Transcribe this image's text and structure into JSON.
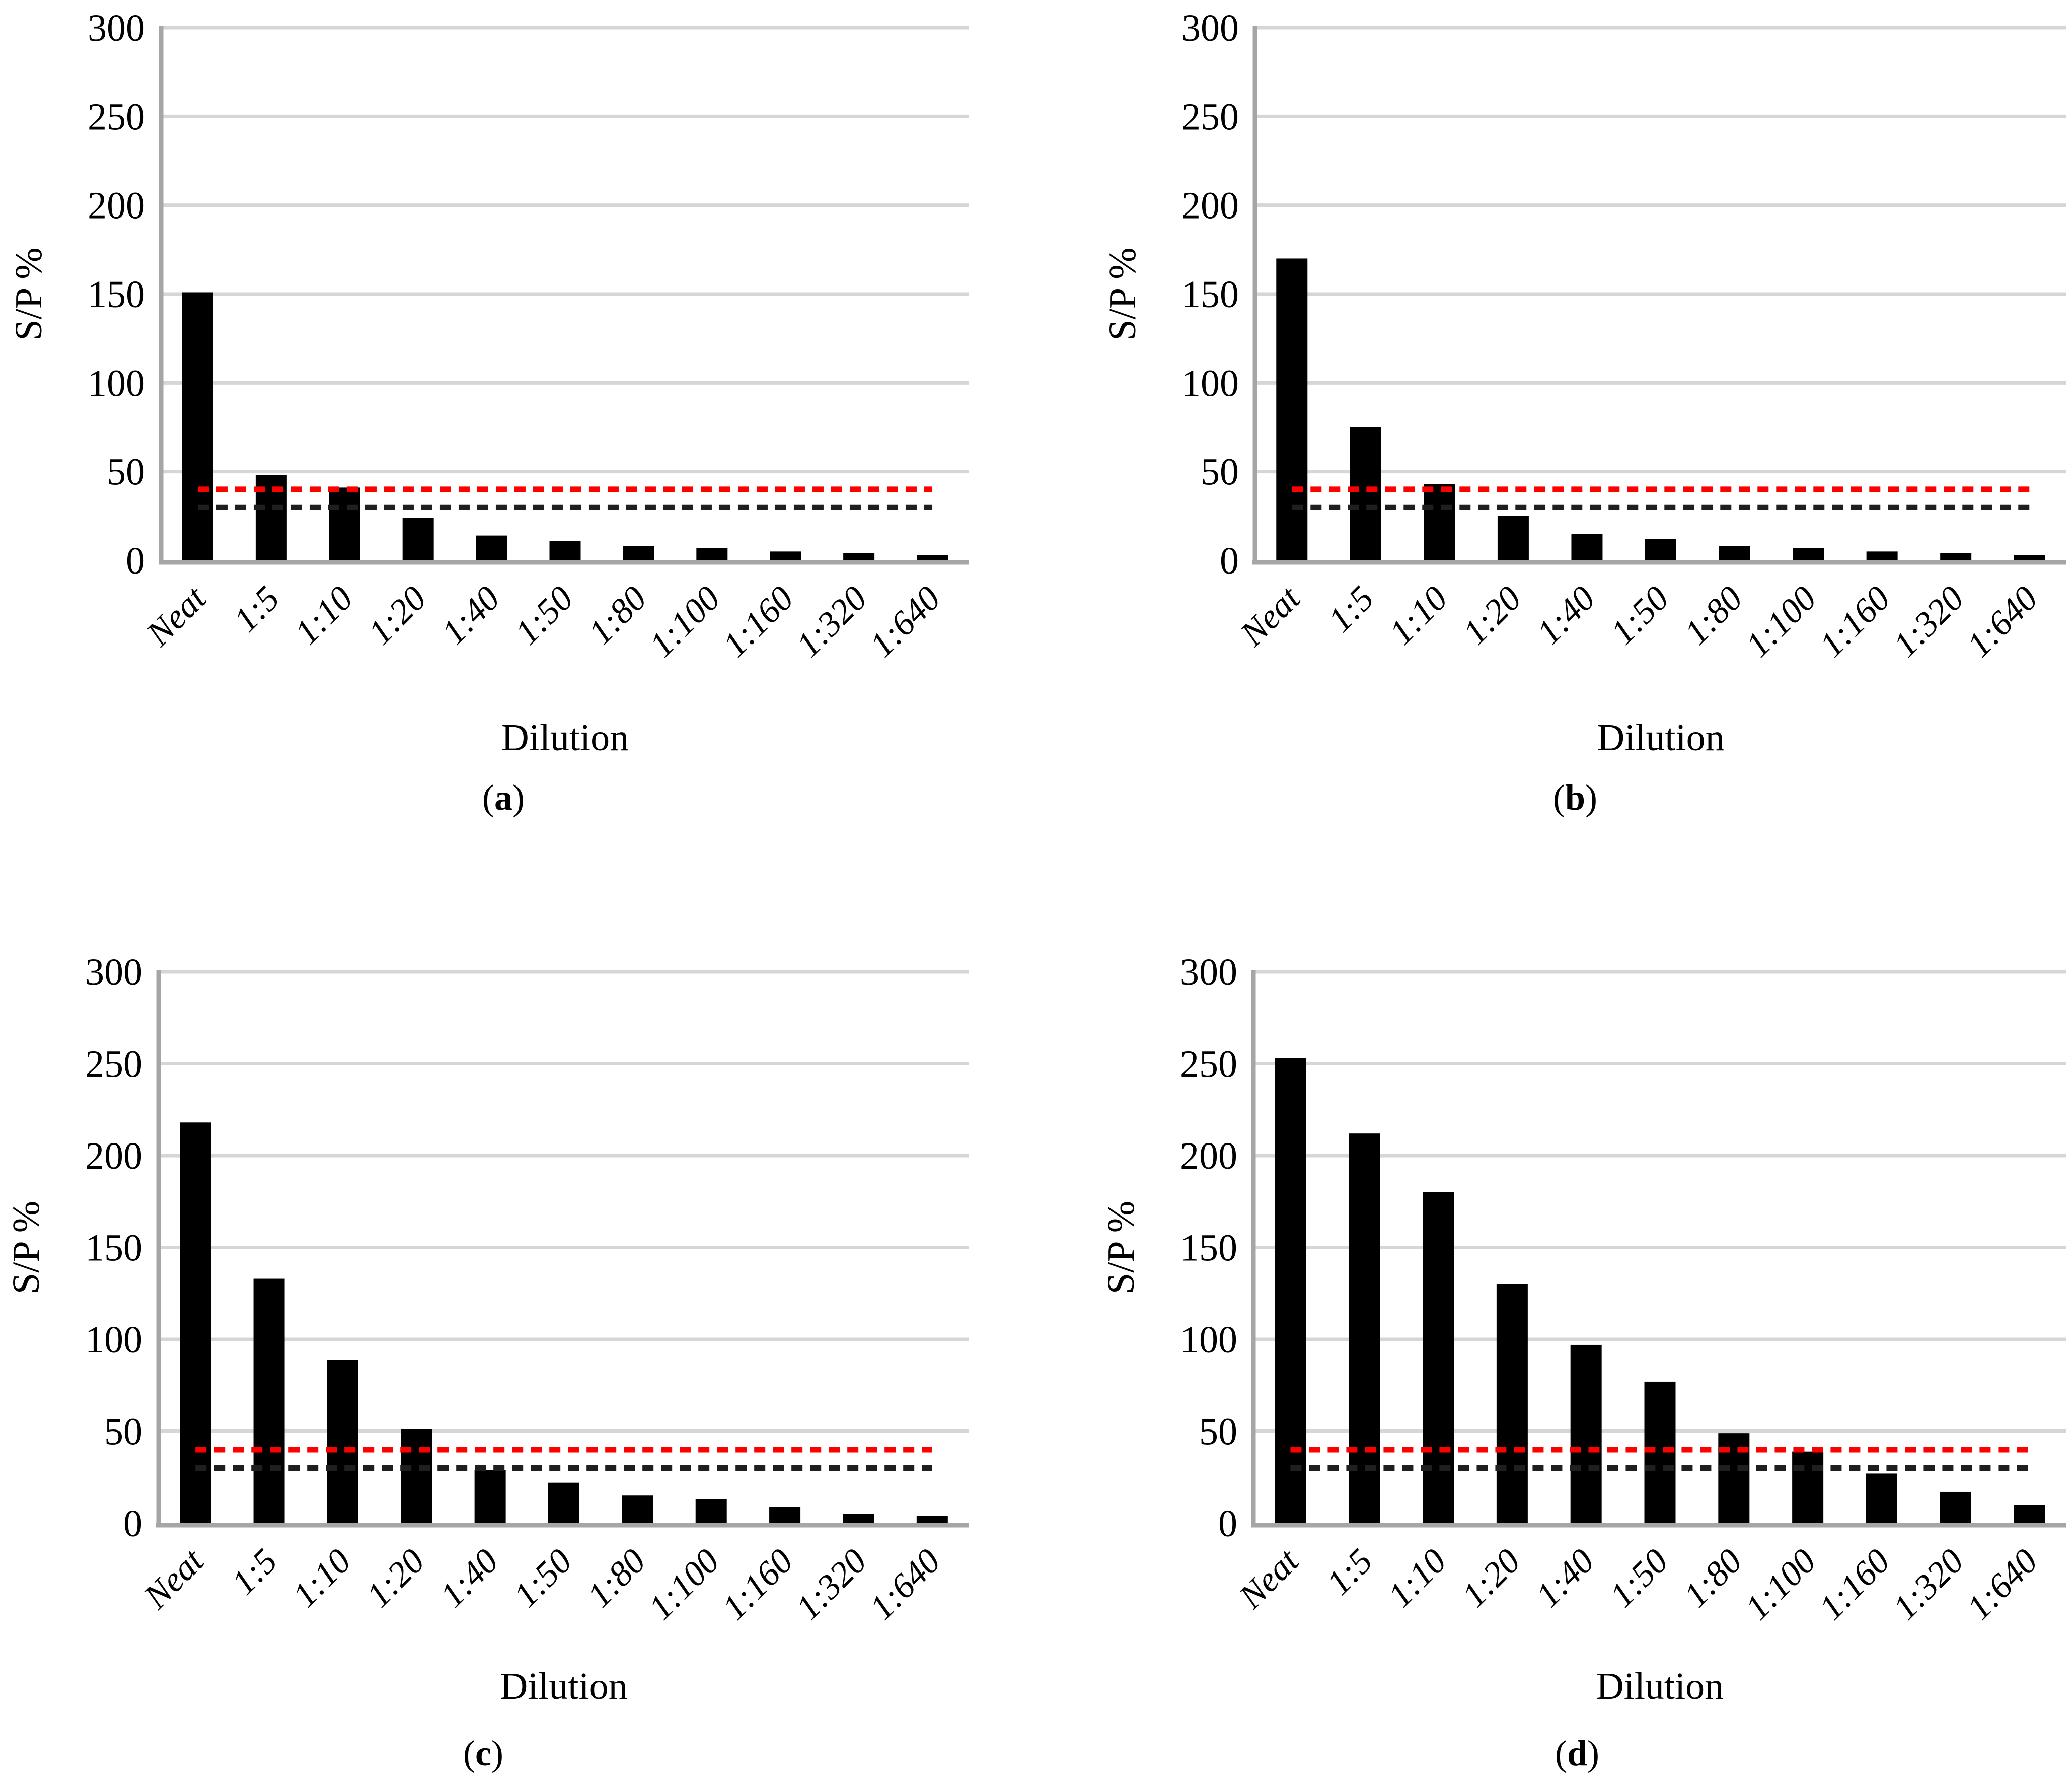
{
  "figure": {
    "background": "#ffffff",
    "panels": [
      {
        "caption_open": "(",
        "caption_letter": "a",
        "caption_close": ")"
      },
      {
        "caption_open": "(",
        "caption_letter": "b",
        "caption_close": ")"
      },
      {
        "caption_open": "(",
        "caption_letter": "c",
        "caption_close": ")"
      },
      {
        "caption_open": "(",
        "caption_letter": "d",
        "caption_close": ")"
      }
    ]
  },
  "style": {
    "grid_color": "#d6d6d6",
    "axis_color": "#a6a6a6",
    "bar_color": "#000000",
    "red_threshold_color": "#ff0000",
    "black_threshold_color": "#1f1f1f",
    "text_color": "#000000"
  },
  "chart_data": [
    {
      "type": "bar",
      "panel": "a",
      "categories": [
        "Neat",
        "1:5",
        "1:10",
        "1:20",
        "1:40",
        "1:50",
        "1:80",
        "1:100",
        "1:160",
        "1:320",
        "1:640"
      ],
      "values": [
        151,
        48,
        41,
        24,
        14,
        11,
        8,
        7,
        5,
        4,
        3
      ],
      "xlabel": "Dilution",
      "ylabel": "S/P %",
      "ylim": [
        0,
        300
      ],
      "yticks": [
        0,
        50,
        100,
        150,
        200,
        250,
        300
      ],
      "grid": true,
      "legend": "none",
      "bar_color": "#000000",
      "thresholds": [
        {
          "name": "red-dashed-threshold",
          "value": 40,
          "color": "#ff0000"
        },
        {
          "name": "black-dashed-threshold",
          "value": 30,
          "color": "#1f1f1f"
        }
      ]
    },
    {
      "type": "bar",
      "panel": "b",
      "categories": [
        "Neat",
        "1:5",
        "1:10",
        "1:20",
        "1:40",
        "1:50",
        "1:80",
        "1:100",
        "1:160",
        "1:320",
        "1:640"
      ],
      "values": [
        170,
        75,
        43,
        25,
        15,
        12,
        8,
        7,
        5,
        4,
        3
      ],
      "xlabel": "Dilution",
      "ylabel": "S/P %",
      "ylim": [
        0,
        300
      ],
      "yticks": [
        0,
        50,
        100,
        150,
        200,
        250,
        300
      ],
      "grid": true,
      "legend": "none",
      "bar_color": "#000000",
      "thresholds": [
        {
          "name": "red-dashed-threshold",
          "value": 40,
          "color": "#ff0000"
        },
        {
          "name": "black-dashed-threshold",
          "value": 30,
          "color": "#1f1f1f"
        }
      ]
    },
    {
      "type": "bar",
      "panel": "c",
      "categories": [
        "Neat",
        "1:5",
        "1:10",
        "1:20",
        "1:40",
        "1:50",
        "1:80",
        "1:100",
        "1:160",
        "1:320",
        "1:640"
      ],
      "values": [
        218,
        133,
        89,
        51,
        29,
        22,
        15,
        13,
        9,
        5,
        4
      ],
      "xlabel": "Dilution",
      "ylabel": "S/P %",
      "ylim": [
        0,
        300
      ],
      "yticks": [
        0,
        50,
        100,
        150,
        200,
        250,
        300
      ],
      "grid": true,
      "legend": "none",
      "bar_color": "#000000",
      "thresholds": [
        {
          "name": "red-dashed-threshold",
          "value": 40,
          "color": "#ff0000"
        },
        {
          "name": "black-dashed-threshold",
          "value": 30,
          "color": "#1f1f1f"
        }
      ]
    },
    {
      "type": "bar",
      "panel": "d",
      "categories": [
        "Neat",
        "1:5",
        "1:10",
        "1:20",
        "1:40",
        "1:50",
        "1:80",
        "1:100",
        "1:160",
        "1:320",
        "1:640"
      ],
      "values": [
        253,
        212,
        180,
        130,
        97,
        77,
        49,
        39,
        27,
        17,
        10
      ],
      "xlabel": "Dilution",
      "ylabel": "S/P %",
      "ylim": [
        0,
        300
      ],
      "yticks": [
        0,
        50,
        100,
        150,
        200,
        250,
        300
      ],
      "grid": true,
      "legend": "none",
      "bar_color": "#000000",
      "thresholds": [
        {
          "name": "red-dashed-threshold",
          "value": 40,
          "color": "#ff0000"
        },
        {
          "name": "black-dashed-threshold",
          "value": 30,
          "color": "#1f1f1f"
        }
      ]
    }
  ]
}
